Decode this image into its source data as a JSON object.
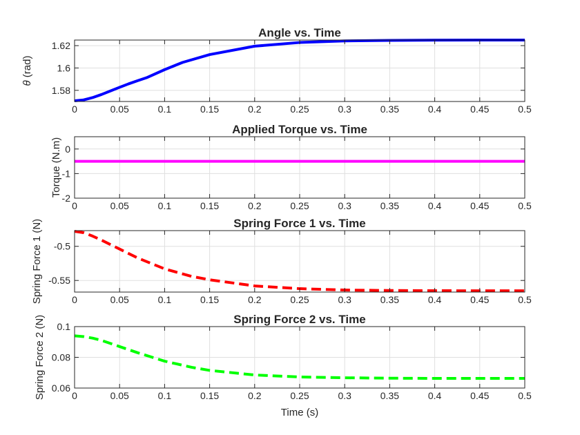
{
  "chart_data": [
    {
      "type": "line",
      "title": "Angle vs. Time",
      "xlabel": "",
      "ylabel": "θ (rad)",
      "xlim": [
        0,
        0.5
      ],
      "ylim": [
        1.57,
        1.625
      ],
      "xticks": [
        0,
        0.05,
        0.1,
        0.15,
        0.2,
        0.25,
        0.3,
        0.35,
        0.4,
        0.45,
        0.5
      ],
      "xtick_labels": [
        "0",
        "0.05",
        "0.1",
        "0.15",
        "0.2",
        "0.25",
        "0.3",
        "0.35",
        "0.4",
        "0.45",
        "0.5"
      ],
      "yticks": [
        1.58,
        1.6,
        1.62
      ],
      "ytick_labels": [
        "1.58",
        "1.6",
        "1.62"
      ],
      "grid": true,
      "series": [
        {
          "color": "#0000ff",
          "line_style": "solid",
          "x": [
            0,
            0.01,
            0.02,
            0.03,
            0.04,
            0.05,
            0.06,
            0.07,
            0.08,
            0.1,
            0.12,
            0.15,
            0.2,
            0.25,
            0.3,
            0.35,
            0.4,
            0.45,
            0.5
          ],
          "y": [
            1.5706,
            1.5714,
            1.5735,
            1.5763,
            1.5795,
            1.5827,
            1.5858,
            1.5886,
            1.5913,
            1.5985,
            1.605,
            1.612,
            1.6195,
            1.6228,
            1.6242,
            1.6247,
            1.6249,
            1.625,
            1.625
          ]
        }
      ]
    },
    {
      "type": "line",
      "title": "Applied Torque vs. Time",
      "xlabel": "",
      "ylabel": "Torque (N.m)",
      "xlim": [
        0,
        0.5
      ],
      "ylim": [
        -2,
        0.5
      ],
      "xticks": [
        0,
        0.05,
        0.1,
        0.15,
        0.2,
        0.25,
        0.3,
        0.35,
        0.4,
        0.45,
        0.5
      ],
      "xtick_labels": [
        "0",
        "0.05",
        "0.1",
        "0.15",
        "0.2",
        "0.25",
        "0.3",
        "0.35",
        "0.4",
        "0.45",
        "0.5"
      ],
      "yticks": [
        -2,
        -1,
        0
      ],
      "ytick_labels": [
        "-2",
        "-1",
        "0"
      ],
      "grid": true,
      "series": [
        {
          "color": "#ff00ff",
          "line_style": "solid",
          "x": [
            0,
            0.5
          ],
          "y": [
            -0.5,
            -0.5
          ]
        }
      ]
    },
    {
      "type": "line",
      "title": "Spring Force 1 vs. Time",
      "xlabel": "",
      "ylabel": "Spring Force 1 (N)",
      "xlim": [
        0,
        0.5
      ],
      "ylim": [
        -0.567,
        -0.477
      ],
      "xticks": [
        0,
        0.05,
        0.1,
        0.15,
        0.2,
        0.25,
        0.3,
        0.35,
        0.4,
        0.45,
        0.5
      ],
      "xtick_labels": [
        "0",
        "0.05",
        "0.1",
        "0.15",
        "0.2",
        "0.25",
        "0.3",
        "0.35",
        "0.4",
        "0.45",
        "0.5"
      ],
      "yticks": [
        -0.55,
        -0.5
      ],
      "ytick_labels": [
        "-0.55",
        "-0.5"
      ],
      "grid": true,
      "series": [
        {
          "color": "#ff0000",
          "line_style": "dashed",
          "x": [
            0,
            0.01,
            0.02,
            0.03,
            0.05,
            0.07,
            0.1,
            0.13,
            0.15,
            0.2,
            0.25,
            0.3,
            0.35,
            0.4,
            0.45,
            0.5
          ],
          "y": [
            -0.478,
            -0.48,
            -0.485,
            -0.491,
            -0.504,
            -0.517,
            -0.533,
            -0.544,
            -0.549,
            -0.558,
            -0.562,
            -0.564,
            -0.5647,
            -0.565,
            -0.5651,
            -0.5651
          ]
        }
      ]
    },
    {
      "type": "line",
      "title": "Spring Force 2 vs. Time",
      "xlabel": "Time (s)",
      "ylabel": "Spring Force 2 (N)",
      "xlim": [
        0,
        0.5
      ],
      "ylim": [
        0.06,
        0.1
      ],
      "xticks": [
        0,
        0.05,
        0.1,
        0.15,
        0.2,
        0.25,
        0.3,
        0.35,
        0.4,
        0.45,
        0.5
      ],
      "xtick_labels": [
        "0",
        "0.05",
        "0.1",
        "0.15",
        "0.2",
        "0.25",
        "0.3",
        "0.35",
        "0.4",
        "0.45",
        "0.5"
      ],
      "yticks": [
        0.06,
        0.08,
        0.1
      ],
      "ytick_labels": [
        "0.06",
        "0.08",
        "0.1"
      ],
      "grid": true,
      "series": [
        {
          "color": "#00ff00",
          "line_style": "dashed",
          "x": [
            0,
            0.01,
            0.02,
            0.03,
            0.05,
            0.07,
            0.1,
            0.13,
            0.15,
            0.2,
            0.25,
            0.3,
            0.35,
            0.4,
            0.45,
            0.5
          ],
          "y": [
            0.094,
            0.0935,
            0.0925,
            0.091,
            0.087,
            0.083,
            0.0775,
            0.0735,
            0.0715,
            0.0685,
            0.0672,
            0.0667,
            0.0664,
            0.0663,
            0.0663,
            0.0663
          ]
        }
      ]
    }
  ]
}
